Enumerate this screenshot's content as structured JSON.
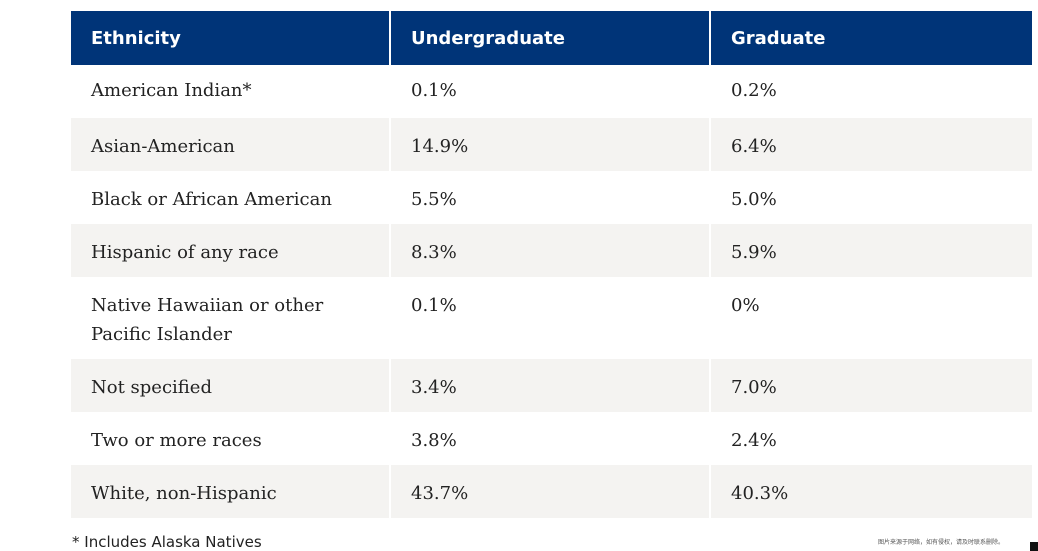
{
  "table": {
    "headers": [
      "Ethnicity",
      "Undergraduate",
      "Graduate"
    ],
    "rows": [
      [
        "American Indian*",
        "0.1%",
        "0.2%"
      ],
      [
        "Asian-American",
        "14.9%",
        "6.4%"
      ],
      [
        "Black or African American",
        "5.5%",
        "5.0%"
      ],
      [
        "Hispanic of any race",
        "8.3%",
        "5.9%"
      ],
      [
        "Native Hawaiian or other Pacific Islander",
        "0.1%",
        "0%"
      ],
      [
        "Not specified",
        "3.4%",
        "7.0%"
      ],
      [
        "Two or more races",
        "3.8%",
        "2.4%"
      ],
      [
        "White, non-Hispanic",
        "43.7%",
        "40.3%"
      ]
    ]
  },
  "footnote": "* Includes Alaska Natives",
  "watermark": "图片来源于网络，如有侵权，请及时联系删除。",
  "colors": {
    "header_bg": "#003478",
    "header_text": "#ffffff",
    "alt_row_bg": "#f4f3f1"
  }
}
